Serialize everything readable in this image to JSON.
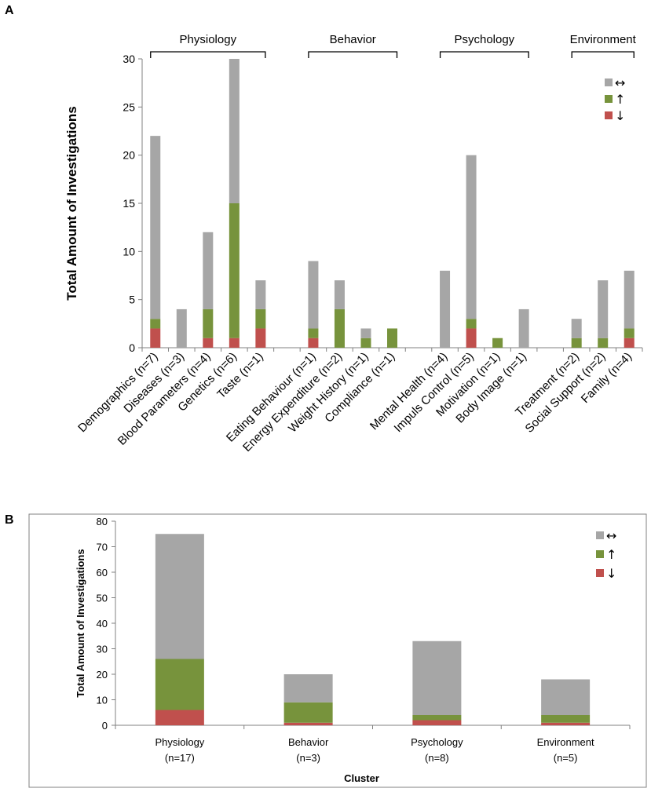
{
  "colors": {
    "neutral": "#a6a6a6",
    "increase": "#77933c",
    "decrease": "#c0504d",
    "axis": "#808080"
  },
  "legend": {
    "neutral": "↔",
    "increase": "↑",
    "decrease": "↓"
  },
  "chart_data": [
    {
      "panel": "A",
      "type": "bar",
      "stacked": true,
      "ylabel": "Total Amount of Investigations",
      "ylim": [
        0,
        30
      ],
      "yticks": [
        0,
        5,
        10,
        15,
        20,
        25,
        30
      ],
      "groups": [
        {
          "name": "Physiology",
          "categories": [
            "Demographics (n=7)",
            "Diseases (n=3)",
            "Blood Parameters (n=4)",
            "Genetics (n=6)",
            "Taste (n=1)"
          ]
        },
        {
          "name": "Behavior",
          "categories": [
            "Eating Behaviour (n=1)",
            "Energy Expenditure (n=2)",
            "Weight History (n=1)",
            "Compliance (n=1)"
          ]
        },
        {
          "name": "Psychology",
          "categories": [
            "Mental Health (n=4)",
            "Impuls Control (n=5)",
            "Motivation (n=1)",
            "Body Image (n=1)"
          ]
        },
        {
          "name": "Environment",
          "categories": [
            "Treatment (n=2)",
            "Social Support (n=2)",
            "Family (n=4)"
          ]
        }
      ],
      "series": [
        {
          "name": "↓",
          "key": "decrease",
          "values": [
            2,
            0,
            1,
            1,
            2,
            1,
            0,
            0,
            0,
            0,
            2,
            0,
            0,
            0,
            0,
            1
          ]
        },
        {
          "name": "↑",
          "key": "increase",
          "values": [
            1,
            0,
            3,
            14,
            2,
            1,
            4,
            1,
            2,
            0,
            1,
            1,
            0,
            1,
            1,
            1
          ]
        },
        {
          "name": "↔",
          "key": "neutral",
          "values": [
            19,
            4,
            8,
            15,
            3,
            7,
            3,
            1,
            0,
            8,
            17,
            0,
            4,
            2,
            6,
            6
          ]
        }
      ],
      "legend_position": "top-right"
    },
    {
      "panel": "B",
      "type": "bar",
      "stacked": true,
      "ylabel": "Total Amount of Investigations",
      "xlabel": "Cluster",
      "ylim": [
        0,
        80
      ],
      "yticks": [
        0,
        10,
        20,
        30,
        40,
        50,
        60,
        70,
        80
      ],
      "categories": [
        [
          "Physiology",
          "(n=17)"
        ],
        [
          "Behavior",
          "(n=3)"
        ],
        [
          "Psychology",
          "(n=8)"
        ],
        [
          "Environment",
          "(n=5)"
        ]
      ],
      "series": [
        {
          "name": "↓",
          "key": "decrease",
          "values": [
            6,
            1,
            2,
            1
          ]
        },
        {
          "name": "↑",
          "key": "increase",
          "values": [
            20,
            8,
            2,
            3
          ]
        },
        {
          "name": "↔",
          "key": "neutral",
          "values": [
            49,
            11,
            29,
            14
          ]
        }
      ],
      "legend_position": "top-right"
    }
  ]
}
